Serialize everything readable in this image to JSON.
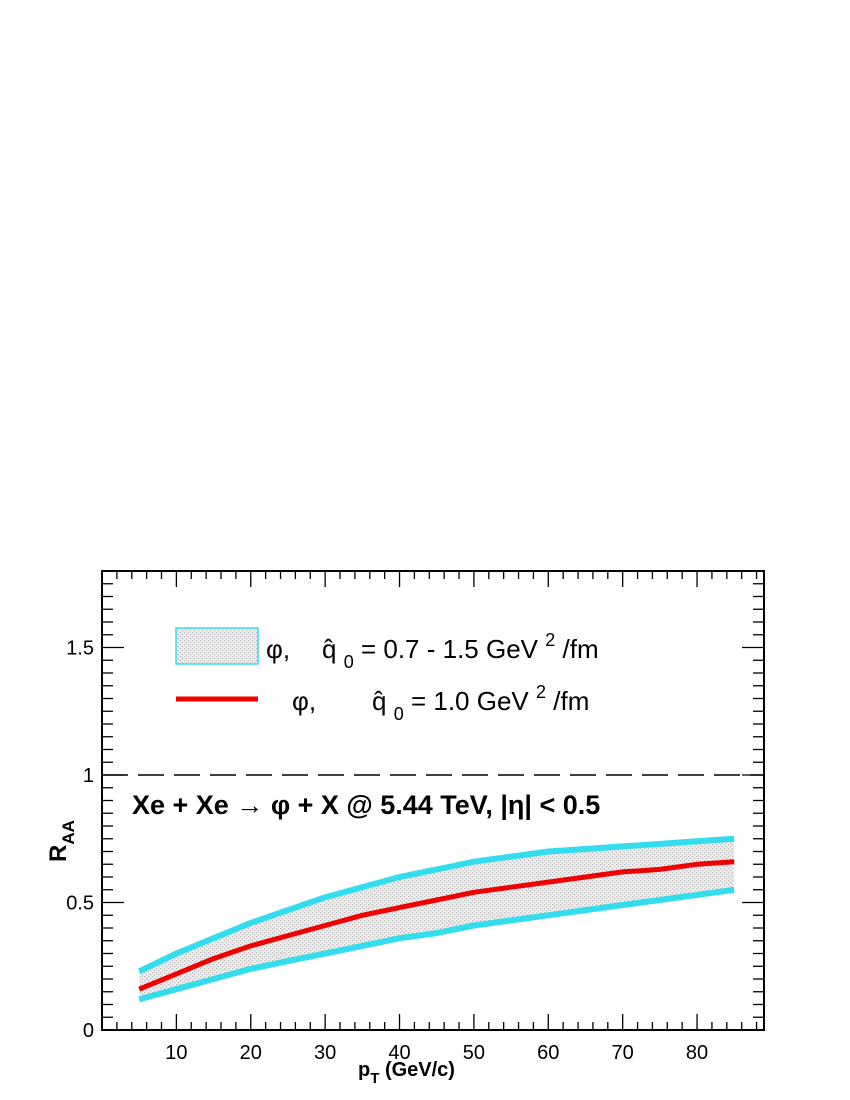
{
  "chart_data": {
    "type": "area",
    "x": [
      5,
      10,
      15,
      20,
      25,
      30,
      35,
      40,
      45,
      50,
      55,
      60,
      65,
      70,
      75,
      80,
      85
    ],
    "series": [
      {
        "name_parts": {
          "particle": "φ,",
          "symbol": "q̂",
          "sub": "0",
          "value": " = 0.7 - 1.5 GeV",
          "sup": "2",
          "unit": "/fm"
        },
        "kind": "band",
        "upper": [
          0.23,
          0.3,
          0.36,
          0.42,
          0.47,
          0.52,
          0.56,
          0.6,
          0.63,
          0.66,
          0.68,
          0.7,
          0.71,
          0.72,
          0.73,
          0.74,
          0.75
        ],
        "lower": [
          0.12,
          0.16,
          0.2,
          0.24,
          0.27,
          0.3,
          0.33,
          0.36,
          0.38,
          0.41,
          0.43,
          0.45,
          0.47,
          0.49,
          0.51,
          0.53,
          0.55
        ],
        "edge_color": "#33ddee",
        "fill_color": "#e4e4e4"
      },
      {
        "name_parts": {
          "particle": "φ,",
          "symbol": "q̂",
          "sub": "0",
          "value": " = 1.0 GeV",
          "sup": "2",
          "unit": "/fm"
        },
        "kind": "line",
        "values": [
          0.16,
          0.22,
          0.28,
          0.33,
          0.37,
          0.41,
          0.45,
          0.48,
          0.51,
          0.54,
          0.56,
          0.58,
          0.6,
          0.62,
          0.63,
          0.65,
          0.66
        ],
        "color": "#ee0000"
      }
    ],
    "annotation": "Xe + Xe  →  φ + X @ 5.44 TeV, |η| < 0.5",
    "xlabel": {
      "main": "p",
      "sub": "T",
      "rest": " (GeV/c)"
    },
    "ylabel": {
      "main": "R",
      "sub": "AA"
    },
    "xlim": [
      0,
      89
    ],
    "ylim": [
      0,
      1.8
    ],
    "xticks": [
      10,
      20,
      30,
      40,
      50,
      60,
      70,
      80
    ],
    "yticks": [
      {
        "v": 0,
        "label": "0"
      },
      {
        "v": 0.5,
        "label": "0.5"
      },
      {
        "v": 1,
        "label": "1"
      },
      {
        "v": 1.5,
        "label": "1.5"
      }
    ],
    "reference_line": {
      "y": 1,
      "style": "dashed"
    },
    "legend_position": "top-left",
    "grid": false
  }
}
